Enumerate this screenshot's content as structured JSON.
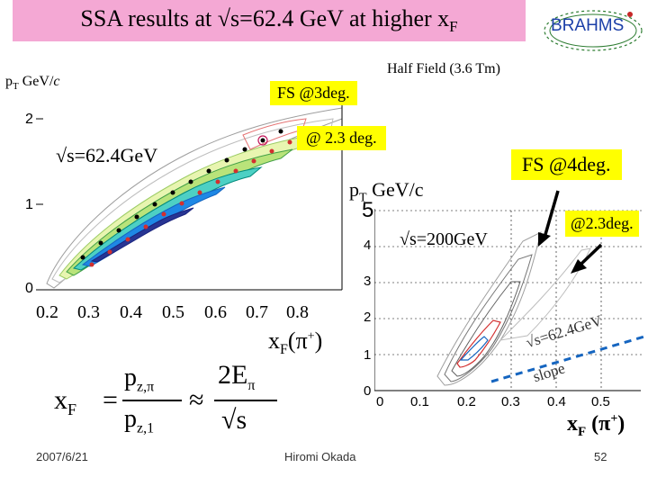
{
  "slide": {
    "title": "SSA results at √s=62.4 GeV at higher x",
    "title_sub": "F",
    "logo_text": "BRAHMS",
    "colors": {
      "title_bg": "#f4a8d4",
      "highlight": "#ffff00",
      "logo_blue": "#1b3fa8",
      "arrow": "#000000"
    }
  },
  "left_panel": {
    "y_axis_label": "p",
    "y_axis_label_sub": "T",
    "y_axis_unit": " GeV/",
    "y_axis_unit_italic": "c",
    "y_ticks": [
      "2",
      "1",
      "0"
    ],
    "x_ticks": [
      "0.2",
      "0.3",
      "0.4",
      "0.5",
      "0.6",
      "0.7",
      "0.8"
    ],
    "energy_label": "√s=62.4GeV",
    "x_axis_label": "x",
    "x_axis_label_sub": "F",
    "x_axis_label_particle": "(π",
    "x_axis_label_charge": "+",
    "x_axis_label_close": ")",
    "fs_box": "FS @3deg.",
    "angle_box": "@ 2.3 deg."
  },
  "field_label": "Half Field (3.6 Tm)",
  "right_panel": {
    "y_axis_label": "p",
    "y_axis_label_sub": "T",
    "y_axis_unit": " GeV/c",
    "y_ticks": [
      "5",
      "4",
      "3",
      "2",
      "1",
      "0"
    ],
    "x_ticks": [
      "0",
      "0.1",
      "0.2",
      "0.3",
      "0.4",
      "0.5"
    ],
    "energy_label": "√s=200GeV",
    "fs_box": "FS @4deg.",
    "angle_box": "@2.3deg.",
    "slope_line_label": "√s=62.4GeV",
    "slope_word": "slope",
    "x_axis_label": "x",
    "x_axis_label_sub": "F",
    "x_axis_label_particle": " (π",
    "x_axis_label_charge": "+",
    "x_axis_label_close": ")"
  },
  "formula": {
    "lhs": "x",
    "lhs_sub": "F",
    "eq": "=",
    "num_p": "p",
    "num_sub": "z,π",
    "den_p": "p",
    "den_sub": "z,1",
    "approx": "≈",
    "num2": "2E",
    "num2_sub": "π",
    "den2": "√s"
  },
  "footer": {
    "date": "2007/6/21",
    "author": "Hiromi Okada",
    "page": "52"
  }
}
